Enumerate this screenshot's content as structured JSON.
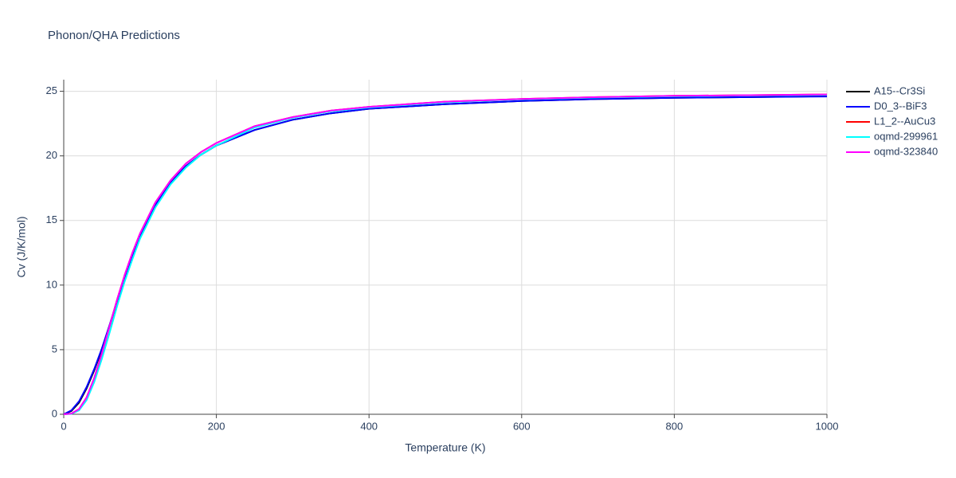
{
  "chart_data": {
    "type": "line",
    "title": "Phonon/QHA Predictions",
    "x_label": "Temperature (K)",
    "y_label": "Cv (J/K/mol)",
    "x": [
      0,
      10,
      20,
      30,
      40,
      50,
      60,
      70,
      80,
      90,
      100,
      120,
      140,
      160,
      180,
      200,
      250,
      300,
      350,
      400,
      500,
      600,
      700,
      800,
      900,
      1000
    ],
    "series": [
      {
        "name": "A15--Cr3Si",
        "color": "#000000",
        "values": [
          0,
          0.25,
          0.9,
          2.0,
          3.4,
          5.0,
          6.8,
          8.7,
          10.5,
          12.2,
          13.7,
          16.1,
          17.9,
          19.2,
          20.1,
          20.8,
          22.0,
          22.8,
          23.3,
          23.65,
          24.0,
          24.25,
          24.4,
          24.5,
          24.55,
          24.62
        ]
      },
      {
        "name": "D0_3--BiF3",
        "color": "#0000ff",
        "values": [
          0,
          0.3,
          1.0,
          2.1,
          3.5,
          5.1,
          6.9,
          8.8,
          10.6,
          12.3,
          13.8,
          16.2,
          17.9,
          19.2,
          20.1,
          20.8,
          22.0,
          22.8,
          23.3,
          23.65,
          24.0,
          24.25,
          24.4,
          24.5,
          24.55,
          24.6
        ]
      },
      {
        "name": "L1_2--AuCu3",
        "color": "#ff0000",
        "values": [
          0,
          0.05,
          0.4,
          1.3,
          2.8,
          4.7,
          6.8,
          8.9,
          10.8,
          12.5,
          14.0,
          16.4,
          18.1,
          19.4,
          20.3,
          21.0,
          22.3,
          23.0,
          23.5,
          23.8,
          24.2,
          24.4,
          24.55,
          24.65,
          24.7,
          24.75
        ]
      },
      {
        "name": "oqmd-299961",
        "color": "#00ffff",
        "values": [
          0,
          0.03,
          0.3,
          1.1,
          2.5,
          4.3,
          6.3,
          8.4,
          10.3,
          12.0,
          13.6,
          16.0,
          17.8,
          19.1,
          20.1,
          20.8,
          22.2,
          22.95,
          23.45,
          23.75,
          24.15,
          24.38,
          24.52,
          24.62,
          24.68,
          24.72
        ]
      },
      {
        "name": "oqmd-323840",
        "color": "#ff00ff",
        "values": [
          0,
          0.05,
          0.4,
          1.3,
          2.8,
          4.7,
          6.8,
          8.9,
          10.8,
          12.5,
          14.0,
          16.4,
          18.1,
          19.4,
          20.3,
          21.0,
          22.3,
          23.0,
          23.5,
          23.8,
          24.2,
          24.4,
          24.55,
          24.65,
          24.7,
          24.75
        ]
      }
    ],
    "xlim": [
      0,
      1000
    ],
    "xticks": [
      0,
      200,
      400,
      600,
      800,
      1000
    ],
    "ylim": [
      0,
      25.9
    ],
    "yticks": [
      0,
      5,
      10,
      15,
      20,
      25
    ],
    "grid": true,
    "legend": "right"
  }
}
